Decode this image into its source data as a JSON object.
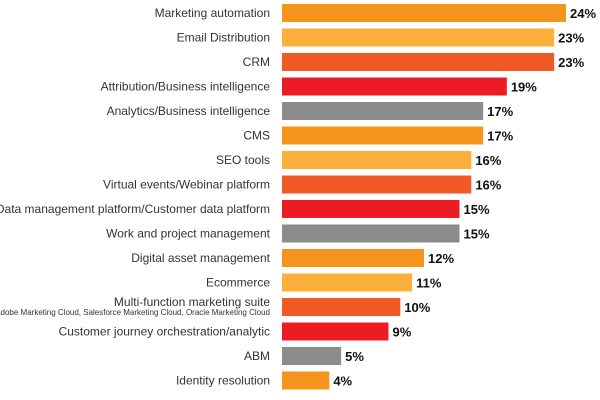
{
  "chart_data": {
    "type": "bar",
    "orientation": "horizontal",
    "title": "",
    "xlabel": "",
    "ylabel": "",
    "xlim": [
      0,
      24
    ],
    "grid": false,
    "categories": [
      "Marketing automation",
      "Email Distribution",
      "CRM",
      "Attribution/Business intelligence",
      "Analytics/Business intelligence",
      "CMS",
      "SEO tools",
      "Virtual events/Webinar platform",
      "Data management platform/Customer data platform",
      "Work and project management",
      "Digital asset management",
      "Ecommerce",
      "Multi-function marketing suite",
      "Customer journey orchestration/analytic",
      "ABM",
      "Identity resolution"
    ],
    "sublabels": {
      "Multi-function marketing suite": "e.g. Adobe Marketing Cloud, Salesforce Marketing Cloud, Oracle Marketing Cloud"
    },
    "values": [
      24,
      23,
      23,
      19,
      17,
      17,
      16,
      16,
      15,
      15,
      12,
      11,
      10,
      9,
      5,
      4
    ],
    "value_labels": [
      "24%",
      "23%",
      "23%",
      "19%",
      "17%",
      "17%",
      "16%",
      "16%",
      "15%",
      "15%",
      "12%",
      "11%",
      "10%",
      "9%",
      "5%",
      "4%"
    ],
    "colors": [
      "#f7941d",
      "#fbb03b",
      "#f15a24",
      "#ed1c24",
      "#8c8c8c",
      "#f7941d",
      "#fbb03b",
      "#f15a24",
      "#ed1c24",
      "#8c8c8c",
      "#f7941d",
      "#fbb03b",
      "#f15a24",
      "#ed1c24",
      "#8c8c8c",
      "#f7941d"
    ]
  }
}
